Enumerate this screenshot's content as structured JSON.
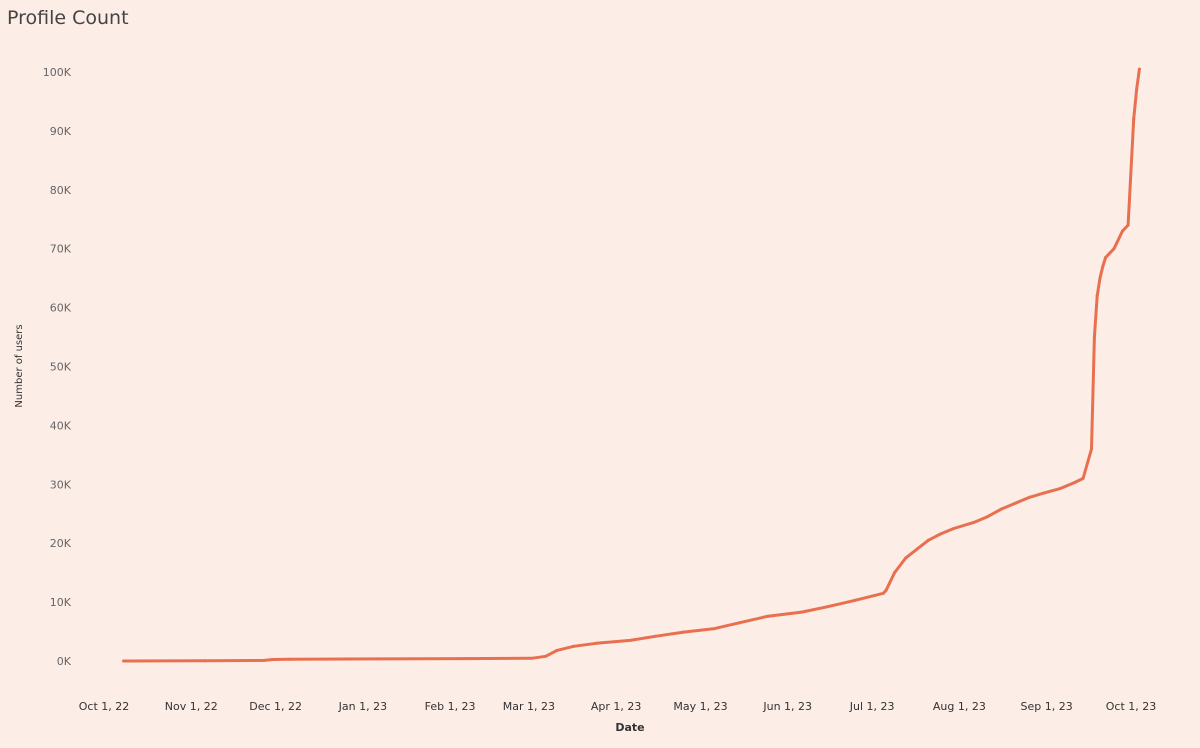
{
  "chart_data": {
    "type": "line",
    "title": "Profile Count",
    "xlabel": "Date",
    "ylabel": "Number of users",
    "ylim": [
      0,
      100000
    ],
    "grid": false,
    "legend": "none",
    "line_color": "#e8704f",
    "background_color": "#fcede6",
    "x_tick_labels": [
      "Oct 1, 22",
      "Nov 1, 22",
      "Dec 1, 22",
      "Jan 1, 23",
      "Feb 1, 23",
      "Mar 1, 23",
      "Apr 1, 23",
      "May 1, 23",
      "Jun 1, 23",
      "Jul 1, 23",
      "Aug 1, 23",
      "Sep 1, 23",
      "Oct 1, 23"
    ],
    "x_tick_dates": [
      "2022-10-01",
      "2022-11-01",
      "2022-12-01",
      "2023-01-01",
      "2023-02-01",
      "2023-03-01",
      "2023-04-01",
      "2023-05-01",
      "2023-06-01",
      "2023-07-01",
      "2023-08-01",
      "2023-09-01",
      "2023-10-01"
    ],
    "y_ticks": [
      0,
      10000,
      20000,
      30000,
      40000,
      50000,
      60000,
      70000,
      80000,
      90000,
      100000
    ],
    "y_tick_labels": [
      "0K",
      "10K",
      "20K",
      "30K",
      "40K",
      "50K",
      "60K",
      "70K",
      "80K",
      "90K",
      "100K"
    ],
    "series": [
      {
        "x": [
          "2022-10-03",
          "2022-11-01",
          "2022-11-22",
          "2022-11-25",
          "2022-12-01",
          "2023-01-01",
          "2023-02-01",
          "2023-02-25",
          "2023-03-02",
          "2023-03-06",
          "2023-03-12",
          "2023-03-20",
          "2023-04-01",
          "2023-04-10",
          "2023-04-20",
          "2023-05-01",
          "2023-05-10",
          "2023-05-20",
          "2023-06-01",
          "2023-06-10",
          "2023-06-20",
          "2023-06-30",
          "2023-07-01",
          "2023-07-04",
          "2023-07-08",
          "2023-07-12",
          "2023-07-16",
          "2023-07-20",
          "2023-07-25",
          "2023-08-01",
          "2023-08-06",
          "2023-08-11",
          "2023-08-16",
          "2023-08-21",
          "2023-08-26",
          "2023-09-01",
          "2023-09-06",
          "2023-09-09",
          "2023-09-12",
          "2023-09-13",
          "2023-09-14",
          "2023-09-15",
          "2023-09-16",
          "2023-09-17",
          "2023-09-18",
          "2023-09-20",
          "2023-09-23",
          "2023-09-25",
          "2023-09-27",
          "2023-09-28",
          "2023-09-29"
        ],
        "y": [
          0,
          50,
          100,
          250,
          300,
          350,
          400,
          450,
          800,
          1800,
          2500,
          3000,
          3500,
          4200,
          4900,
          5500,
          6500,
          7600,
          8300,
          9200,
          10300,
          11500,
          12000,
          15000,
          17500,
          19000,
          20500,
          21500,
          22500,
          23500,
          24500,
          25800,
          26800,
          27800,
          28500,
          29300,
          30300,
          31000,
          36000,
          55000,
          62000,
          65000,
          67000,
          68500,
          69000,
          70000,
          73000,
          74000,
          92000,
          97000,
          100500
        ]
      }
    ]
  }
}
